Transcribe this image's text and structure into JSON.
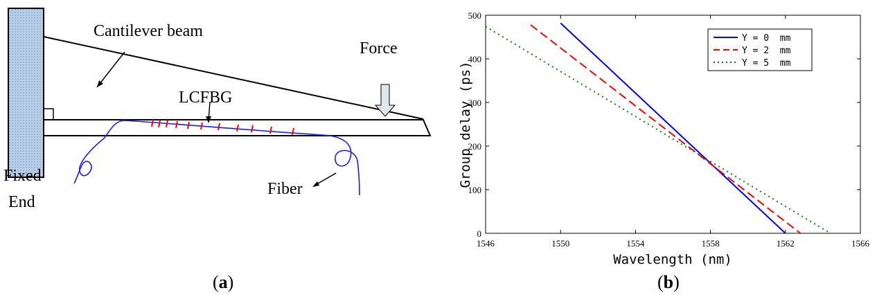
{
  "panel_a": {
    "caption": "a",
    "labels": {
      "cantilever_beam": "Cantilever beam",
      "force": "Force",
      "lcfbg": "LCFBG",
      "fixed": "Fixed",
      "end": "End",
      "fiber": "Fiber"
    },
    "colors": {
      "fiber": "#1a1aff",
      "grating": "#ff0000",
      "wall_fill": "#b9cfe8",
      "force_arrow_fill": "#dfe6ee"
    }
  },
  "panel_b": {
    "caption": "b",
    "chart_data": {
      "type": "line",
      "xlabel": "Wavelength (nm)",
      "ylabel": "Group delay (ps)",
      "xlim": [
        1546,
        1566
      ],
      "ylim": [
        0,
        500
      ],
      "xticks": [
        "1546",
        "1550",
        "1554",
        "1558",
        "1562",
        "1566"
      ],
      "yticks": [
        "0",
        "100",
        "200",
        "300",
        "400",
        "500"
      ],
      "legend_position": "top-right",
      "grid": false,
      "series": [
        {
          "name": "Y = 0  mm",
          "color": "#0000ff",
          "dash": "solid",
          "x": [
            1550.0,
            1562.0
          ],
          "y": [
            482,
            0
          ]
        },
        {
          "name": "Y = 2  mm",
          "color": "#ff0000",
          "dash": "dashed",
          "x": [
            1548.4,
            1562.8
          ],
          "y": [
            478,
            0
          ]
        },
        {
          "name": "Y = 5  mm",
          "color": "#008000",
          "dash": "dotted",
          "x": [
            1546.0,
            1564.4
          ],
          "y": [
            474,
            0
          ]
        }
      ]
    }
  }
}
